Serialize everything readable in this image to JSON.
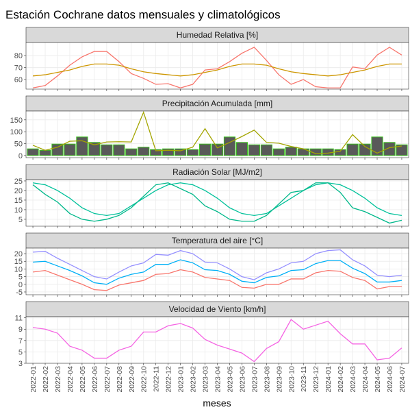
{
  "title": "Estación Cochrane datos mensuales y climatológicos",
  "x_label": "meses",
  "categories": [
    "2022-01",
    "2022-02",
    "2022-03",
    "2022-04",
    "2022-05",
    "2022-06",
    "2022-07",
    "2022-08",
    "2022-09",
    "2022-10",
    "2022-11",
    "2022-12",
    "2023-01",
    "2023-02",
    "2023-03",
    "2023-04",
    "2023-05",
    "2023-06",
    "2023-07",
    "2023-08",
    "2023-09",
    "2023-10",
    "2023-11",
    "2023-12",
    "2024-01",
    "2024-02",
    "2024-03",
    "2024-04",
    "2024-05",
    "2024-06",
    "2024-07"
  ],
  "chart_data": [
    {
      "type": "line",
      "title": "Humedad Relativa [%]",
      "ylim": [
        52,
        91
      ],
      "yticks": [
        60,
        70,
        80
      ],
      "grid": true,
      "series": [
        {
          "type": "line",
          "color": "#f8766d",
          "values": [
            53,
            55,
            63,
            72,
            79,
            83.5,
            83.5,
            75,
            65,
            61,
            56,
            56.5,
            53,
            56,
            68,
            69,
            75,
            82,
            87,
            76,
            64,
            56,
            60,
            54,
            53,
            53,
            70.5,
            69,
            80.5,
            87,
            80.5
          ]
        },
        {
          "type": "line",
          "color": "#cd9600",
          "values": [
            63,
            64,
            66,
            68,
            71,
            73,
            73,
            72,
            69,
            66.5,
            65,
            64,
            63,
            64,
            66,
            68,
            71,
            73,
            73,
            72,
            69,
            66.5,
            65,
            64,
            63,
            64,
            66,
            68,
            71,
            73,
            73
          ]
        }
      ]
    },
    {
      "type": "combo",
      "title": "Precipitación Acumulada [mm]",
      "ylim": [
        -9,
        187
      ],
      "yticks": [
        0,
        50,
        100,
        150
      ],
      "grid": true,
      "series": [
        {
          "type": "bar",
          "color": "#595959",
          "edge": "#3cbf1f",
          "values": [
            28,
            22,
            48,
            48,
            78,
            55,
            45,
            45,
            28,
            35,
            25,
            28,
            28,
            25,
            48,
            48,
            78,
            55,
            45,
            45,
            28,
            35,
            28,
            28,
            28,
            25,
            48,
            48,
            78,
            55,
            45
          ]
        },
        {
          "type": "line",
          "color": "#a3a500",
          "values": [
            43,
            22,
            35,
            60,
            62,
            45,
            57,
            58,
            57,
            182,
            20,
            22,
            20,
            35,
            113,
            32,
            55,
            80,
            107,
            55,
            52,
            38,
            28,
            8,
            10,
            18,
            88,
            38,
            10,
            33,
            40
          ]
        }
      ]
    },
    {
      "type": "line",
      "title": "Radiación Solar [MJ/m2]",
      "ylim": [
        1.4,
        25.7
      ],
      "yticks": [
        5,
        10,
        15,
        20,
        25
      ],
      "grid": true,
      "series": [
        {
          "type": "line",
          "color": "#00c19a",
          "values": [
            24,
            23,
            20,
            16,
            11,
            8,
            7,
            8,
            12,
            16,
            20,
            23,
            24,
            23,
            20,
            16,
            11,
            8,
            7,
            8,
            12,
            16,
            20,
            23,
            24,
            23,
            20,
            16,
            11,
            8,
            7
          ]
        },
        {
          "type": "line",
          "color": "#00b88a",
          "values": [
            23,
            18,
            14,
            8,
            5,
            4,
            5,
            7,
            11,
            17,
            23,
            24,
            21,
            18,
            12,
            9,
            5,
            4,
            4,
            7,
            13,
            19,
            20,
            24,
            24,
            19,
            11,
            9,
            6,
            3,
            4.5
          ]
        }
      ]
    },
    {
      "type": "line",
      "title": "Temperatura del aire [°C]",
      "ylim": [
        -6.8,
        23.6
      ],
      "yticks": [
        -5,
        0,
        5,
        10,
        15,
        20
      ],
      "grid": true,
      "series": [
        {
          "type": "line",
          "color": "#9590ff",
          "values": [
            21,
            21.5,
            17,
            13,
            9,
            5,
            3.5,
            8,
            12,
            14,
            19.5,
            19,
            22,
            20,
            14.5,
            14,
            10,
            5,
            3,
            7.5,
            10,
            14,
            15,
            20,
            22,
            22.5,
            16,
            12,
            6,
            5,
            6
          ]
        },
        {
          "type": "line",
          "color": "#00b0f6",
          "values": [
            14.5,
            15,
            12,
            9,
            5.5,
            1,
            0,
            4,
            6.5,
            8,
            13,
            13,
            16,
            14,
            9.5,
            9,
            6.5,
            2,
            1,
            4.5,
            5.5,
            9,
            9.5,
            13.5,
            15.5,
            15.5,
            10.5,
            7,
            1.5,
            1.5,
            2.5
          ]
        },
        {
          "type": "line",
          "color": "#f8766d",
          "values": [
            8,
            9,
            6,
            3,
            0,
            -3.5,
            -4,
            -0.5,
            1,
            2.5,
            6.5,
            7,
            9.5,
            8,
            4.5,
            3.5,
            2.5,
            -2,
            -2.5,
            0,
            0,
            3.5,
            3.5,
            7.5,
            9,
            8.5,
            4.5,
            2.5,
            -3,
            -1.5,
            -1.5
          ]
        }
      ]
    },
    {
      "type": "line",
      "title": "Velocidad de Viento [km/h]",
      "ylim": [
        3,
        11.2
      ],
      "yticks": [
        3,
        5,
        7,
        9,
        11
      ],
      "grid": true,
      "series": [
        {
          "type": "line",
          "color": "#f564e3",
          "values": [
            9.3,
            9,
            8.3,
            6,
            5.3,
            3.9,
            3.9,
            5.3,
            6,
            8.5,
            8.5,
            9.6,
            10,
            9.2,
            7.2,
            6.2,
            5.5,
            4.8,
            3.3,
            5.6,
            6.8,
            10.7,
            9,
            9.7,
            10.4,
            8.2,
            6.4,
            6.4,
            3.6,
            3.9,
            5.7
          ]
        }
      ]
    }
  ]
}
